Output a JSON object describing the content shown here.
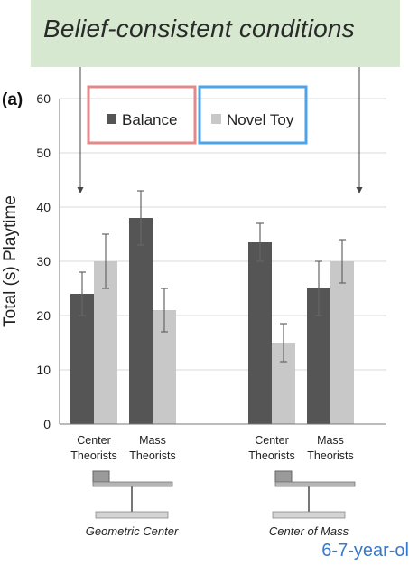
{
  "banner": {
    "text": "Belief-consistent conditions"
  },
  "panel_label": "(a)",
  "footer": "6-7-year-ol",
  "chart_data": {
    "type": "bar",
    "title": "",
    "ylabel": "Total (s) Playtime",
    "ylim": [
      0,
      60
    ],
    "yticks": [
      0,
      10,
      20,
      30,
      40,
      50,
      60
    ],
    "grid": true,
    "legend_placement": "top-left",
    "groups": [
      {
        "caption": "Geometric Center",
        "categories": [
          "Center Theorists",
          "Mass Theorists"
        ]
      },
      {
        "caption": "Center of Mass",
        "categories": [
          "Center Theorists",
          "Mass Theorists"
        ]
      }
    ],
    "category_labels": [
      [
        "Center",
        "Theorists"
      ],
      [
        "Mass",
        "Theorists"
      ],
      [
        "Center",
        "Theorists"
      ],
      [
        "Mass",
        "Theorists"
      ]
    ],
    "series": [
      {
        "name": "Balance",
        "color": "#555555",
        "values": [
          24,
          38,
          33.5,
          25
        ],
        "errors": [
          4,
          5,
          3.5,
          5
        ]
      },
      {
        "name": "Novel Toy",
        "color": "#c8c8c8",
        "values": [
          30,
          21,
          15,
          30
        ],
        "errors": [
          5,
          4,
          3.5,
          4
        ]
      }
    ],
    "legend_box_colors": {
      "Balance": "#e08a8a",
      "Novel Toy": "#4da3e8"
    }
  }
}
